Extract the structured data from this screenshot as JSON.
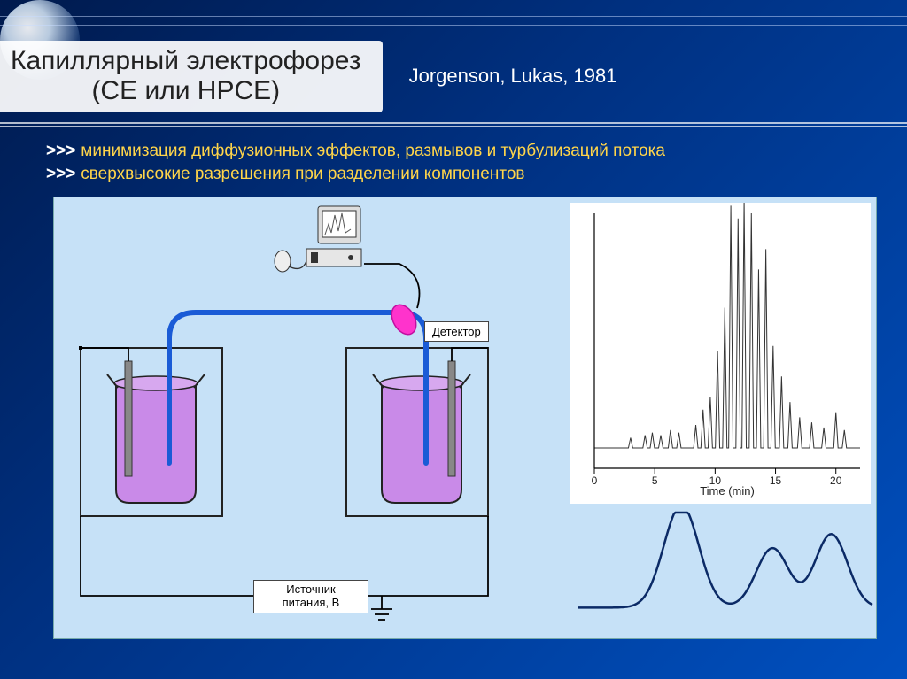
{
  "title": {
    "line1": "Капиллярный электрофорез",
    "line2": "(CE или HPCE)"
  },
  "citation": "Jorgenson, Lukas, 1981",
  "bullets": [
    "минимизация диффузионных эффектов, размывов и турбулизаций потока",
    "сверхвысокие разрешения при разделении компонентов"
  ],
  "diagram": {
    "background": "#c6e1f7",
    "detector_label": "Детектор",
    "power_label_l1": "Источник",
    "power_label_l2": "питания, В",
    "capillary_color": "#1a5bd6",
    "liquid_color": "#c98ae8",
    "beaker_stroke": "#222222",
    "detector_fill": "#ff33cc",
    "wire_color": "#000000"
  },
  "electropherogram": {
    "type": "line",
    "xlabel": "Time (min)",
    "xlim": [
      0,
      22
    ],
    "xticks": [
      0,
      5,
      10,
      15,
      20
    ],
    "ylim": [
      0,
      100
    ],
    "baseline_y": 8,
    "peaks": [
      {
        "x": 3.0,
        "h": 4
      },
      {
        "x": 4.2,
        "h": 5
      },
      {
        "x": 4.8,
        "h": 6
      },
      {
        "x": 5.5,
        "h": 5
      },
      {
        "x": 6.3,
        "h": 7
      },
      {
        "x": 7.0,
        "h": 6
      },
      {
        "x": 8.4,
        "h": 9
      },
      {
        "x": 9.0,
        "h": 15
      },
      {
        "x": 9.6,
        "h": 20
      },
      {
        "x": 10.2,
        "h": 38
      },
      {
        "x": 10.8,
        "h": 55
      },
      {
        "x": 11.3,
        "h": 95
      },
      {
        "x": 11.9,
        "h": 90
      },
      {
        "x": 12.4,
        "h": 97
      },
      {
        "x": 13.0,
        "h": 92
      },
      {
        "x": 13.6,
        "h": 70
      },
      {
        "x": 14.2,
        "h": 78
      },
      {
        "x": 14.8,
        "h": 40
      },
      {
        "x": 15.5,
        "h": 28
      },
      {
        "x": 16.2,
        "h": 18
      },
      {
        "x": 17.0,
        "h": 12
      },
      {
        "x": 18.0,
        "h": 10
      },
      {
        "x": 19.0,
        "h": 8
      },
      {
        "x": 20.0,
        "h": 14
      },
      {
        "x": 20.7,
        "h": 7
      }
    ],
    "peak_width": 0.18,
    "line_color": "#333333",
    "line_width": 1,
    "axis_color": "#000000"
  },
  "bottom_curve": {
    "type": "line",
    "color": "#0b2a66",
    "line_width": 2.5,
    "xlim": [
      0,
      100
    ],
    "ylim": [
      0,
      100
    ],
    "peaks": [
      {
        "x": 35,
        "h": 95,
        "w": 14
      },
      {
        "x": 66,
        "h": 55,
        "w": 13
      },
      {
        "x": 86,
        "h": 68,
        "w": 13
      }
    ],
    "baseline_y": 12
  },
  "colors": {
    "bg_grad_start": "#001a4d",
    "bg_grad_end": "#0050c0",
    "title_bg": "rgba(255,255,255,0.92)",
    "title_text": "#222222",
    "bullet_text": "#ffd54a",
    "bullet_arrow": "#ffffff"
  }
}
